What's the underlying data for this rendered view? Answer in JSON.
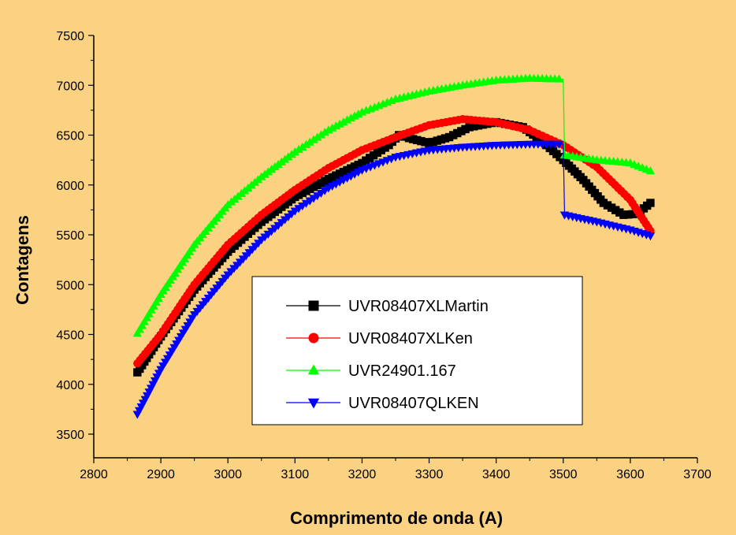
{
  "chart_data": {
    "type": "line",
    "title": "",
    "xlabel": "Comprimento de onda (A)",
    "ylabel": "Contagens",
    "xlim": [
      2800,
      3700
    ],
    "ylim": [
      3250,
      7500
    ],
    "x_ticks": [
      2800,
      2900,
      3000,
      3100,
      3200,
      3300,
      3400,
      3500,
      3600,
      3700
    ],
    "y_ticks": [
      3500,
      4000,
      4500,
      5000,
      5500,
      6000,
      6500,
      7000,
      7500
    ],
    "grid": false,
    "legend_position": "center",
    "series": [
      {
        "name": "UVR08407XLMartin",
        "color": "#000000",
        "marker": "square",
        "points": [
          [
            2865,
            4120
          ],
          [
            2900,
            4480
          ],
          [
            2950,
            4950
          ],
          [
            3000,
            5330
          ],
          [
            3050,
            5630
          ],
          [
            3100,
            5880
          ],
          [
            3150,
            6060
          ],
          [
            3200,
            6220
          ],
          [
            3240,
            6400
          ],
          [
            3255,
            6500
          ],
          [
            3270,
            6470
          ],
          [
            3300,
            6420
          ],
          [
            3330,
            6480
          ],
          [
            3360,
            6580
          ],
          [
            3400,
            6630
          ],
          [
            3440,
            6580
          ],
          [
            3470,
            6430
          ],
          [
            3500,
            6250
          ],
          [
            3530,
            6050
          ],
          [
            3560,
            5820
          ],
          [
            3590,
            5700
          ],
          [
            3610,
            5710
          ],
          [
            3630,
            5820
          ]
        ]
      },
      {
        "name": "UVR08407XLKen",
        "color": "#FF0000",
        "marker": "circle",
        "points": [
          [
            2865,
            4210
          ],
          [
            2900,
            4500
          ],
          [
            2950,
            5000
          ],
          [
            3000,
            5400
          ],
          [
            3050,
            5700
          ],
          [
            3100,
            5950
          ],
          [
            3150,
            6170
          ],
          [
            3200,
            6350
          ],
          [
            3250,
            6480
          ],
          [
            3300,
            6600
          ],
          [
            3350,
            6660
          ],
          [
            3400,
            6630
          ],
          [
            3450,
            6550
          ],
          [
            3500,
            6400
          ],
          [
            3550,
            6180
          ],
          [
            3600,
            5850
          ],
          [
            3630,
            5540
          ]
        ]
      },
      {
        "name": "UVR24901.167",
        "color": "#00FF00",
        "marker": "triangle-up",
        "points": [
          [
            2865,
            4510
          ],
          [
            2900,
            4900
          ],
          [
            2950,
            5400
          ],
          [
            3000,
            5800
          ],
          [
            3050,
            6080
          ],
          [
            3100,
            6330
          ],
          [
            3150,
            6550
          ],
          [
            3200,
            6730
          ],
          [
            3250,
            6860
          ],
          [
            3300,
            6940
          ],
          [
            3350,
            7000
          ],
          [
            3400,
            7050
          ],
          [
            3450,
            7070
          ],
          [
            3500,
            7060
          ],
          [
            3502,
            6300
          ],
          [
            3550,
            6250
          ],
          [
            3600,
            6220
          ],
          [
            3630,
            6140
          ]
        ]
      },
      {
        "name": "UVR08407QLKEN",
        "color": "#0000FF",
        "marker": "triangle-down",
        "points": [
          [
            2865,
            3700
          ],
          [
            2900,
            4150
          ],
          [
            2950,
            4700
          ],
          [
            3000,
            5100
          ],
          [
            3050,
            5450
          ],
          [
            3100,
            5740
          ],
          [
            3150,
            5970
          ],
          [
            3200,
            6150
          ],
          [
            3250,
            6280
          ],
          [
            3300,
            6350
          ],
          [
            3350,
            6380
          ],
          [
            3400,
            6400
          ],
          [
            3450,
            6410
          ],
          [
            3500,
            6410
          ],
          [
            3502,
            5700
          ],
          [
            3550,
            5630
          ],
          [
            3600,
            5550
          ],
          [
            3630,
            5490
          ]
        ]
      }
    ]
  }
}
